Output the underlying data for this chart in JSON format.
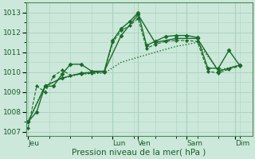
{
  "title": "",
  "xlabel": "Pression niveau de la mer( hPa )",
  "ylabel": "",
  "bg_color": "#cce8da",
  "grid_color": "#aad4c0",
  "line_color": "#1a6b2a",
  "spine_color": "#4a8a5a",
  "ylim": [
    1006.8,
    1013.5
  ],
  "yticks": [
    1007,
    1008,
    1009,
    1010,
    1011,
    1012,
    1013
  ],
  "xlim": [
    -0.1,
    10.6
  ],
  "day_tick_positions": [
    0,
    4.0,
    5.2,
    7.5,
    9.8
  ],
  "day_labels": [
    "Jeu",
    "Lun",
    "Ven",
    "Sam",
    "Dim"
  ],
  "vline_positions": [
    0,
    4.0,
    5.2,
    7.5,
    9.8
  ],
  "series": [
    {
      "x": [
        0.0,
        0.4,
        0.8,
        1.2,
        1.6,
        2.0,
        2.5,
        3.0,
        3.6,
        4.0,
        4.4,
        4.8,
        5.2,
        5.6,
        6.0,
        6.5,
        7.0,
        7.5,
        8.0,
        8.5,
        9.0,
        9.5,
        10.0
      ],
      "y": [
        1007.5,
        1008.0,
        1009.3,
        1009.3,
        1009.9,
        1010.4,
        1010.4,
        1010.05,
        1010.05,
        1011.6,
        1012.2,
        1012.55,
        1013.0,
        1011.35,
        1011.55,
        1011.8,
        1011.85,
        1011.85,
        1011.75,
        1010.2,
        1010.2,
        1011.1,
        1010.35
      ],
      "style": "-",
      "marker": "D",
      "markersize": 2.5,
      "linewidth": 1.0
    },
    {
      "x": [
        0.0,
        0.4,
        0.8,
        1.2,
        1.6,
        2.0,
        2.5,
        3.0,
        3.6,
        4.0,
        4.4,
        4.8,
        5.2,
        5.6,
        6.0,
        6.5,
        7.0,
        7.5,
        8.0,
        8.5,
        9.0,
        9.5,
        10.0
      ],
      "y": [
        1007.2,
        1009.3,
        1009.0,
        1009.8,
        1010.1,
        1009.85,
        1009.9,
        1009.95,
        1010.0,
        1011.5,
        1012.1,
        1012.35,
        1012.7,
        1011.2,
        1011.4,
        1011.55,
        1011.6,
        1011.6,
        1011.55,
        1010.05,
        1009.95,
        1010.15,
        1010.3
      ],
      "style": "--",
      "marker": "D",
      "markersize": 2.0,
      "linewidth": 0.8
    },
    {
      "x": [
        0.0,
        0.8,
        1.6,
        2.5,
        3.6,
        4.4,
        5.2,
        6.0,
        7.0,
        8.0,
        9.0,
        10.0
      ],
      "y": [
        1007.5,
        1009.3,
        1009.7,
        1009.95,
        1010.05,
        1011.85,
        1012.9,
        1011.5,
        1011.7,
        1011.7,
        1010.05,
        1010.35
      ],
      "style": "-",
      "marker": "D",
      "markersize": 2.5,
      "linewidth": 1.0
    },
    {
      "x": [
        0.0,
        0.8,
        1.6,
        2.5,
        3.6,
        4.4,
        5.2,
        6.0,
        7.0,
        8.0,
        9.0,
        10.0
      ],
      "y": [
        1007.5,
        1009.3,
        1009.7,
        1009.9,
        1009.95,
        1010.5,
        1010.75,
        1011.0,
        1011.3,
        1011.5,
        1010.1,
        1010.35
      ],
      "style": ":",
      "marker": null,
      "markersize": 0,
      "linewidth": 1.0
    }
  ]
}
